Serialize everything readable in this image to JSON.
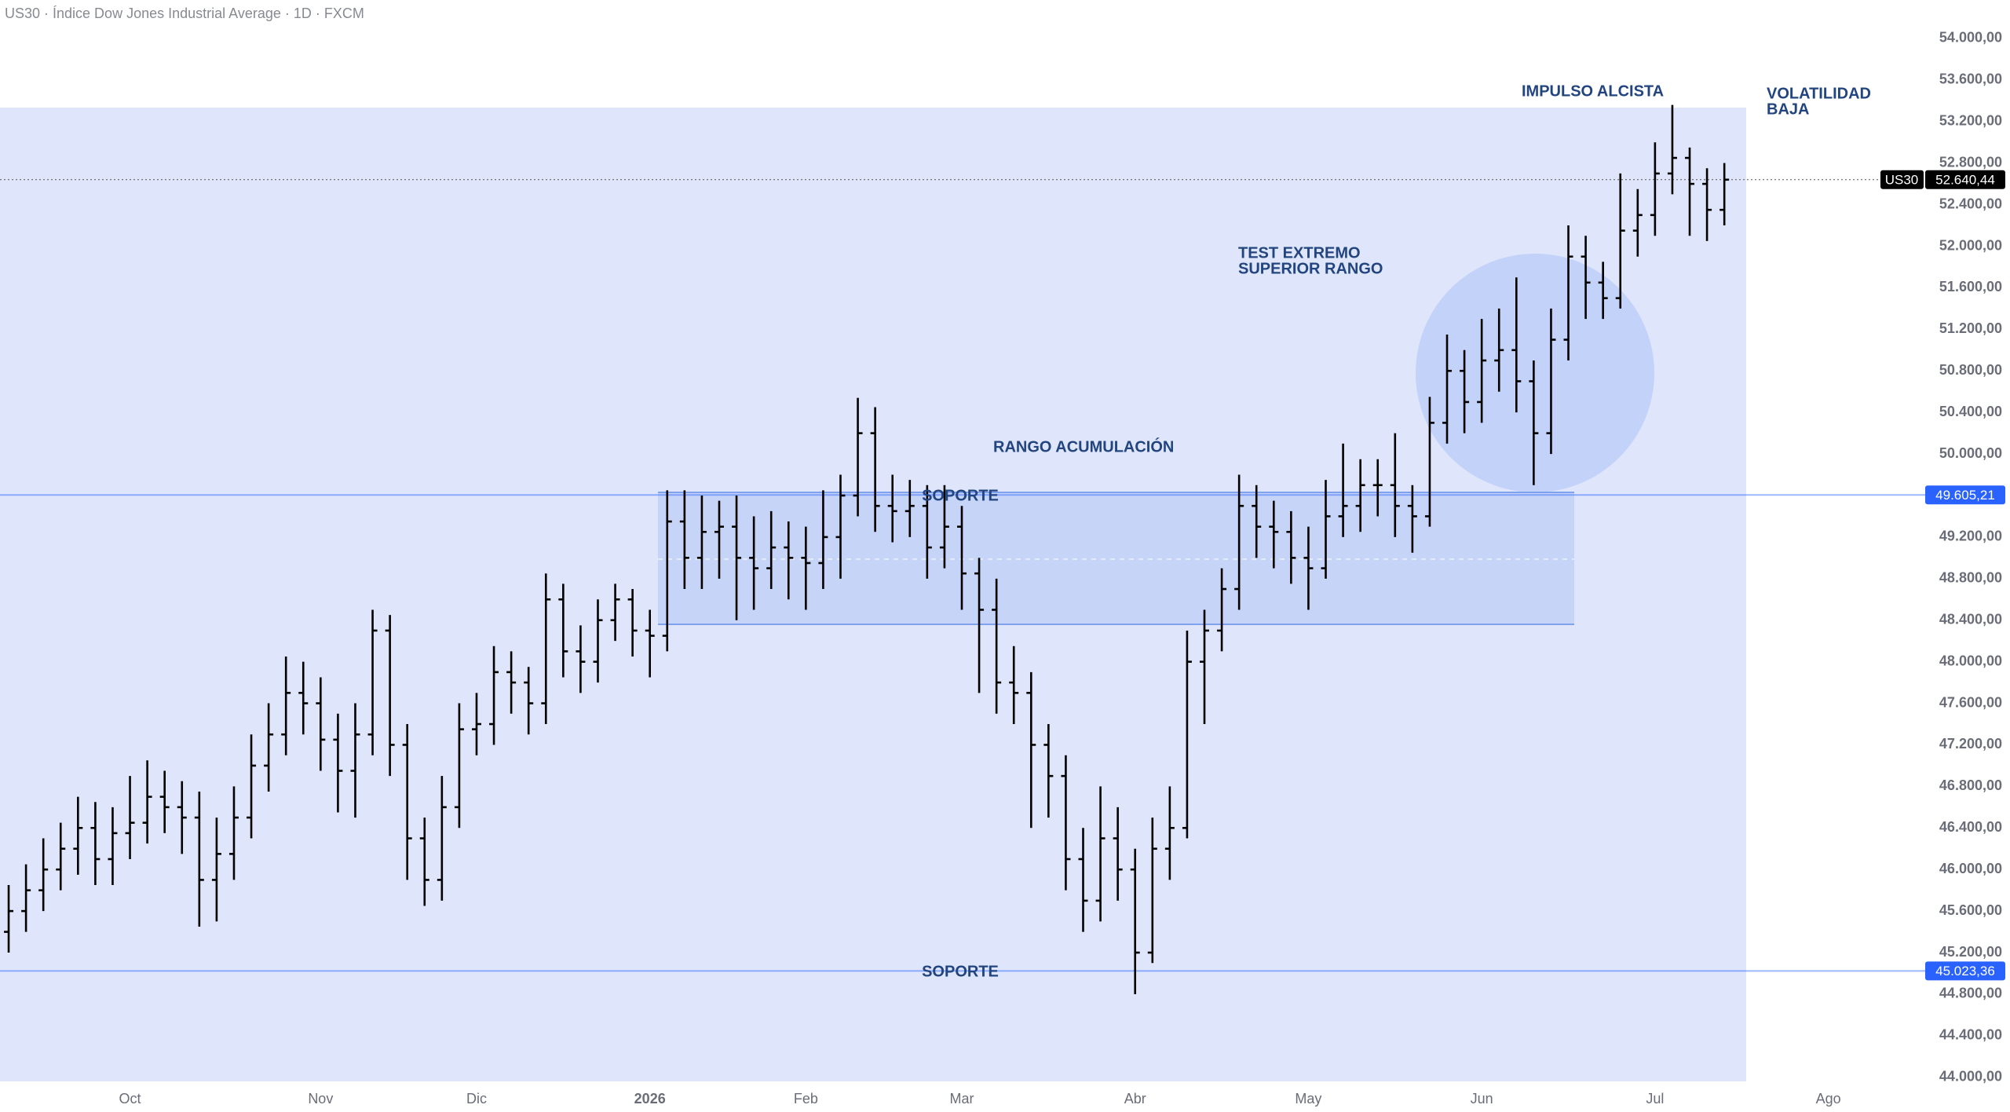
{
  "chart_data": {
    "type": "ohlc",
    "title": "US30 · Índice Dow Jones Industrial Average · 1D · FXCM",
    "categories": [
      null,
      null,
      null,
      null,
      null,
      null,
      null,
      "Oct",
      null,
      null,
      null,
      null,
      null,
      null,
      null,
      null,
      null,
      null,
      "Nov",
      null,
      null,
      null,
      null,
      null,
      null,
      null,
      null,
      "Dic",
      null,
      null,
      null,
      null,
      null,
      null,
      null,
      null,
      null,
      "2026",
      null,
      null,
      null,
      null,
      null,
      null,
      null,
      null,
      "Feb",
      null,
      null,
      null,
      null,
      null,
      null,
      null,
      null,
      "Mar",
      null,
      null,
      null,
      null,
      null,
      null,
      null,
      null,
      null,
      "Abr",
      null,
      null,
      null,
      null,
      null,
      null,
      null,
      null,
      null,
      "May",
      null,
      null,
      null,
      null,
      null,
      null,
      null,
      null,
      null,
      "Jun",
      null,
      null,
      null,
      null,
      null,
      null,
      null,
      null,
      null,
      "Jul",
      null,
      null,
      null,
      null,
      null,
      null,
      null,
      null,
      null,
      "Ago",
      null,
      null,
      null,
      null,
      null
    ],
    "series": [
      {
        "name": "US30",
        "color": "#000000",
        "open": [
          45400,
          45600,
          45800,
          46000,
          46200,
          46400,
          46100,
          46350,
          46450,
          46700,
          46600,
          46500,
          45900,
          46150,
          46500,
          47000,
          47300,
          47700,
          47600,
          47250,
          46950,
          47300,
          48300,
          47200,
          46300,
          45900,
          46600,
          47350,
          47400,
          47900,
          47800,
          47600,
          48600,
          48100,
          48000,
          48400,
          48600,
          48300,
          48250,
          49350,
          49000,
          49250,
          49300,
          49000,
          48900,
          49100,
          49000,
          48950,
          49200,
          49600,
          50200,
          49500,
          49450,
          49500,
          49100,
          49300,
          48850,
          48500,
          47800,
          47700,
          47200,
          46900,
          46100,
          45700,
          46300,
          46000,
          45200,
          46200,
          46400,
          48000,
          48300,
          48700,
          49500,
          49300,
          49250,
          49000,
          48900,
          49400,
          49500,
          49700,
          49700,
          49500,
          49400,
          50300,
          50800,
          50500,
          50900,
          51000,
          50700,
          50200,
          51100,
          51900,
          51650,
          51500,
          52150,
          52300,
          52700,
          52850,
          52600,
          52350,
          null,
          null,
          null,
          null,
          null,
          null,
          null,
          null,
          null,
          null,
          null
        ],
        "high": [
          45850,
          46050,
          46300,
          46450,
          46700,
          46650,
          46600,
          46900,
          47050,
          46950,
          46850,
          46750,
          46500,
          46800,
          47300,
          47600,
          48050,
          48000,
          47850,
          47500,
          47600,
          48500,
          48450,
          47400,
          46500,
          46900,
          47600,
          47700,
          48150,
          48100,
          47950,
          48850,
          48750,
          48350,
          48600,
          48750,
          48700,
          48500,
          49650,
          49650,
          49600,
          49550,
          49600,
          49400,
          49450,
          49350,
          49300,
          49650,
          49800,
          50540,
          50450,
          49800,
          49750,
          49700,
          49700,
          49500,
          49000,
          48800,
          48150,
          47900,
          47400,
          47100,
          46400,
          46800,
          46600,
          46200,
          46500,
          46800,
          48300,
          48500,
          48900,
          49800,
          49700,
          49550,
          49450,
          49300,
          49750,
          50100,
          49950,
          49950,
          50200,
          49700,
          50550,
          51150,
          51000,
          51300,
          51400,
          51700,
          50900,
          51400,
          52200,
          52100,
          51850,
          52700,
          52550,
          53000,
          53360,
          52950,
          52750,
          52800,
          null,
          null,
          null,
          null,
          null,
          null,
          null,
          null,
          null,
          null,
          null
        ],
        "low": [
          45200,
          45400,
          45600,
          45800,
          45950,
          45850,
          45850,
          46100,
          46250,
          46350,
          46150,
          45450,
          45500,
          45900,
          46300,
          46750,
          47100,
          47300,
          46950,
          46550,
          46500,
          47100,
          46900,
          45900,
          45650,
          45700,
          46400,
          47100,
          47200,
          47500,
          47300,
          47400,
          47850,
          47700,
          47800,
          48200,
          48050,
          47850,
          48100,
          48700,
          48700,
          48800,
          48400,
          48500,
          48700,
          48600,
          48500,
          48700,
          48800,
          49400,
          49250,
          49150,
          49200,
          48800,
          48900,
          48500,
          47700,
          47500,
          47400,
          46400,
          46500,
          45800,
          45400,
          45500,
          45700,
          44800,
          45100,
          45900,
          46300,
          47400,
          48100,
          48500,
          49000,
          48900,
          48750,
          48500,
          48800,
          49200,
          49250,
          49400,
          49200,
          49050,
          49300,
          50100,
          50200,
          50300,
          50600,
          50400,
          49700,
          50000,
          50900,
          51300,
          51300,
          51400,
          51900,
          52100,
          52500,
          52100,
          52050,
          52200,
          null,
          null,
          null,
          null,
          null,
          null,
          null,
          null,
          null,
          null,
          null
        ],
        "close": [
          45600,
          45800,
          46000,
          46200,
          46400,
          46100,
          46350,
          46450,
          46700,
          46600,
          46500,
          45900,
          46150,
          46500,
          47000,
          47300,
          47700,
          47600,
          47250,
          46950,
          47300,
          48300,
          47200,
          46300,
          45900,
          46600,
          47350,
          47400,
          47900,
          47800,
          47600,
          48600,
          48100,
          48000,
          48400,
          48600,
          48300,
          48250,
          49350,
          49000,
          49250,
          49300,
          49000,
          48900,
          49100,
          49000,
          48950,
          49200,
          49600,
          50200,
          49500,
          49450,
          49500,
          49100,
          49300,
          48850,
          48500,
          47800,
          47700,
          47200,
          46900,
          46100,
          45700,
          46300,
          46000,
          45200,
          46200,
          46400,
          48000,
          48300,
          48700,
          49500,
          49300,
          49250,
          49000,
          48900,
          49400,
          49500,
          49700,
          49700,
          49500,
          49400,
          50300,
          50800,
          50500,
          50900,
          51000,
          50700,
          50200,
          51100,
          51900,
          51650,
          51500,
          52150,
          52300,
          52700,
          52850,
          52600,
          52350,
          52640.44,
          null,
          null,
          null,
          null,
          null,
          null,
          null,
          null,
          null,
          null,
          null
        ]
      }
    ],
    "ylim": [
      43900,
      54370
    ],
    "yticks": [
      {
        "value": 44000,
        "label": "44.000,00"
      },
      {
        "value": 44400,
        "label": "44.400,00"
      },
      {
        "value": 44800,
        "label": "44.800,00"
      },
      {
        "value": 45200,
        "label": "45.200,00"
      },
      {
        "value": 45600,
        "label": "45.600,00"
      },
      {
        "value": 46000,
        "label": "46.000,00"
      },
      {
        "value": 46400,
        "label": "46.400,00"
      },
      {
        "value": 46800,
        "label": "46.800,00"
      },
      {
        "value": 47200,
        "label": "47.200,00"
      },
      {
        "value": 47600,
        "label": "47.600,00"
      },
      {
        "value": 48000,
        "label": "48.000,00"
      },
      {
        "value": 48400,
        "label": "48.400,00"
      },
      {
        "value": 48800,
        "label": "48.800,00"
      },
      {
        "value": 49200,
        "label": "49.200,00"
      },
      {
        "value": 50000,
        "label": "50.000,00"
      },
      {
        "value": 50400,
        "label": "50.400,00"
      },
      {
        "value": 50800,
        "label": "50.800,00"
      },
      {
        "value": 51200,
        "label": "51.200,00"
      },
      {
        "value": 51600,
        "label": "51.600,00"
      },
      {
        "value": 52000,
        "label": "52.000,00"
      },
      {
        "value": 52400,
        "label": "52.400,00"
      },
      {
        "value": 52800,
        "label": "52.800,00"
      },
      {
        "value": 53200,
        "label": "53.200,00"
      },
      {
        "value": 53600,
        "label": "53.600,00"
      },
      {
        "value": 54000,
        "label": "54.000,00"
      }
    ],
    "levels": [
      {
        "value": 49605.21,
        "label": "49.605,21",
        "color": "#2962ff"
      },
      {
        "value": 45023.36,
        "label": "45.023,36",
        "color": "#2962ff"
      }
    ],
    "last_price": {
      "value": 52640.44,
      "label": "52.640,44"
    },
    "annotations": {
      "impulse": "IMPULSO ALCISTA",
      "volatility": [
        "VOLATILIDAD",
        "BAJA"
      ],
      "test": [
        "TEST EXTREMO",
        "SUPERIOR RANGO"
      ],
      "range": "RANGO ACUMULACIÓN",
      "support_upper": "SOPORTE",
      "support_lower": "SOPORTE"
    }
  }
}
